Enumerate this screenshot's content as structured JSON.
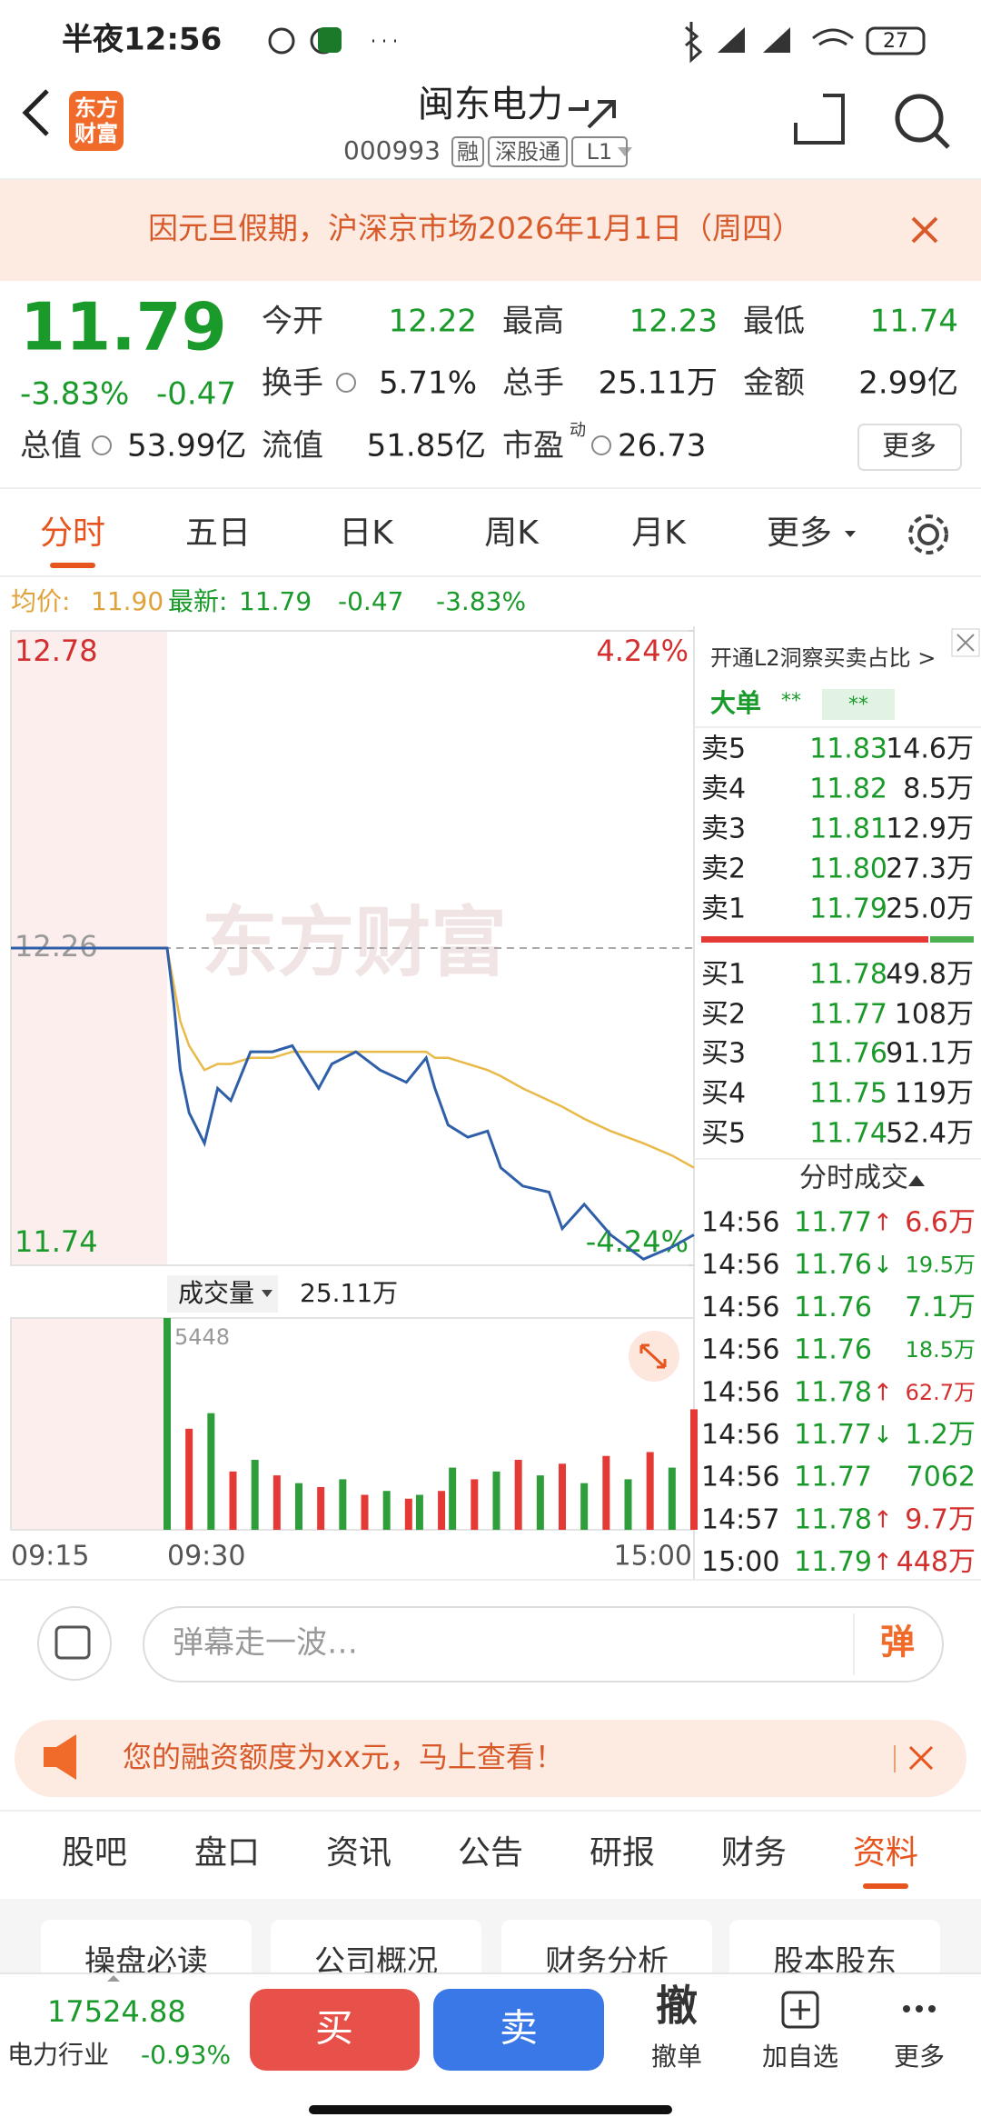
{
  "status_bar": {
    "time": "半夜12:56",
    "battery": "27"
  },
  "header": {
    "logo": [
      "东方",
      "财富"
    ],
    "title": "闽东电力",
    "code": "000993",
    "badges": [
      "融",
      "深股通",
      "L1"
    ]
  },
  "notice": "因元旦假期，沪深京市场2026年1月1日（周四）",
  "quote": {
    "price": "11.79",
    "change_pct": "-3.83%",
    "change": "-0.47",
    "stats": [
      [
        {
          "label": "今开",
          "value": "12.22"
        },
        {
          "label": "最高",
          "value": "12.23"
        },
        {
          "label": "最低",
          "value": "11.74"
        }
      ],
      [
        {
          "label": "换手",
          "value": "5.71%"
        },
        {
          "label": "总手",
          "value": "25.11万"
        },
        {
          "label": "金额",
          "value": "2.99亿"
        }
      ],
      [
        {
          "label": "总值",
          "value": "53.99亿"
        },
        {
          "label": "流值",
          "value": "51.85亿"
        },
        {
          "label": "市盈",
          "sup": "动",
          "value": "26.73"
        }
      ]
    ],
    "more": "更多"
  },
  "tabs": [
    "分时",
    "五日",
    "日K",
    "周K",
    "月K",
    "更多"
  ],
  "info_line": {
    "avg_label": "均价:",
    "avg": "11.90",
    "latest_label": "最新:",
    "latest": "11.79",
    "change": "-0.47",
    "change_pct": "-3.83%"
  },
  "chart_data": [
    {
      "type": "line",
      "watermark": "东方财富",
      "x": [
        "09:15",
        "09:29",
        "09:30",
        "09:33",
        "09:36",
        "09:40",
        "09:47",
        "09:53",
        "09:59",
        "10:08",
        "10:18",
        "10:27",
        "10:39",
        "10:45",
        "10:56",
        "11:07",
        "11:19",
        "11:28",
        "13:02",
        "13:08",
        "13:17",
        "13:26",
        "13:32",
        "13:42",
        "13:54",
        "14:00",
        "14:10",
        "14:22",
        "14:37",
        "14:50",
        "15:00"
      ],
      "series": [
        {
          "color": "#2f5fa8",
          "values": [
            12.26,
            12.26,
            12.26,
            12.17,
            12.06,
            11.99,
            11.94,
            12.03,
            12.01,
            12.09,
            12.09,
            12.1,
            12.03,
            12.07,
            12.09,
            12.06,
            12.04,
            12.08,
            12.03,
            11.97,
            11.95,
            11.96,
            11.9,
            11.87,
            11.86,
            11.8,
            11.84,
            11.79,
            11.75,
            11.77,
            11.79
          ]
        },
        {
          "color": "#e9b949",
          "values": [
            null,
            null,
            12.26,
            12.2,
            12.14,
            12.1,
            12.06,
            12.07,
            12.07,
            12.08,
            12.08,
            12.09,
            12.09,
            12.09,
            12.09,
            12.09,
            12.09,
            12.09,
            12.08,
            12.08,
            12.07,
            12.06,
            12.05,
            12.03,
            12.01,
            12.0,
            11.98,
            11.96,
            11.94,
            11.92,
            11.9
          ]
        }
      ],
      "ylim": [
        11.74,
        12.78
      ],
      "yticks": [
        11.74,
        12.26,
        12.78
      ],
      "y2lim": [
        -4.24,
        4.24
      ],
      "y2ticks": [
        {
          "value": -4.24,
          "label": "-4.24%"
        },
        {
          "value": 4.24,
          "label": "4.24%"
        }
      ],
      "x_labels": [
        "09:15",
        "09:30",
        "15:00"
      ]
    },
    {
      "type": "bar",
      "label": "成交量",
      "total": "25.11万",
      "x": [
        "09:30",
        "09:40",
        "09:50",
        "10:00",
        "10:10",
        "10:20",
        "10:30",
        "10:40",
        "10:50",
        "11:00",
        "11:10",
        "11:20",
        "11:25",
        "13:05",
        "13:10",
        "13:20",
        "13:30",
        "13:40",
        "13:50",
        "14:00",
        "14:10",
        "14:20",
        "14:30",
        "14:40",
        "14:50",
        "15:00"
      ],
      "series": [
        {
          "color": "#e53935",
          "values": [
            null,
            2600,
            null,
            1500,
            null,
            1400,
            null,
            1100,
            null,
            900,
            null,
            800,
            null,
            1000,
            null,
            1300,
            null,
            1800,
            null,
            1700,
            null,
            1900,
            null,
            2000,
            null,
            3100
          ]
        },
        {
          "color": "#2e9e3a",
          "values": [
            5448,
            null,
            3000,
            null,
            1800,
            null,
            1200,
            null,
            1300,
            null,
            1000,
            null,
            900,
            null,
            1600,
            null,
            1500,
            null,
            1400,
            null,
            1200,
            null,
            1300,
            null,
            1600,
            null
          ]
        }
      ],
      "ylim": [
        0,
        5448
      ],
      "yticks": [
        5448
      ]
    }
  ],
  "order_book": {
    "l2_link": "开通L2洞察买卖占比 >",
    "big_order": "大单",
    "masked": [
      "**",
      "**"
    ],
    "asks": [
      {
        "label": "卖5",
        "price": "11.83",
        "volume": "14.6万"
      },
      {
        "label": "卖4",
        "price": "11.82",
        "volume": "8.5万"
      },
      {
        "label": "卖3",
        "price": "11.81",
        "volume": "12.9万"
      },
      {
        "label": "卖2",
        "price": "11.80",
        "volume": "27.3万"
      },
      {
        "label": "卖1",
        "price": "11.79",
        "volume": "25.0万"
      }
    ],
    "bids": [
      {
        "label": "买1",
        "price": "11.78",
        "volume": "49.8万"
      },
      {
        "label": "买2",
        "price": "11.77",
        "volume": "108万"
      },
      {
        "label": "买3",
        "price": "11.76",
        "volume": "91.1万"
      },
      {
        "label": "买4",
        "price": "11.75",
        "volume": "119万"
      },
      {
        "label": "买5",
        "price": "11.74",
        "volume": "52.4万"
      }
    ]
  },
  "ticks": {
    "title": "分时成交",
    "rows": [
      {
        "time": "14:56",
        "price": "11.77",
        "arrow": "↑",
        "volume": "6.6万"
      },
      {
        "time": "14:56",
        "price": "11.76",
        "arrow": "↓",
        "volume": "19.5万"
      },
      {
        "time": "14:56",
        "price": "11.76",
        "volume": "7.1万"
      },
      {
        "time": "14:56",
        "price": "11.76",
        "volume": "18.5万"
      },
      {
        "time": "14:56",
        "price": "11.78",
        "arrow": "↑",
        "volume": "62.7万"
      },
      {
        "time": "14:56",
        "price": "11.77",
        "arrow": "↓",
        "volume": "1.2万"
      },
      {
        "time": "14:56",
        "price": "11.77",
        "volume": "7062"
      },
      {
        "time": "14:57",
        "price": "11.78",
        "arrow": "↑",
        "volume": "9.7万"
      },
      {
        "time": "15:00",
        "price": "11.79",
        "arrow": "↑",
        "volume": "448万"
      }
    ]
  },
  "danmaku": {
    "placeholder": "弹幕走一波…",
    "button": "弹"
  },
  "promo": "您的融资额度为xx元，马上查看！",
  "bottom_tabs": [
    "股吧",
    "盘口",
    "资讯",
    "公告",
    "研报",
    "财务",
    "资料"
  ],
  "sub_buttons": [
    "操盘必读",
    "公司概况",
    "财务分析",
    "股本股东"
  ],
  "bottom_bar": {
    "index": "17524.88",
    "industry": "电力行业",
    "industry_change": "-0.93%",
    "buy": "买",
    "sell": "卖",
    "cancel_icon": "撤",
    "cancel": "撤单",
    "watch": "加自选",
    "more": "更多"
  }
}
